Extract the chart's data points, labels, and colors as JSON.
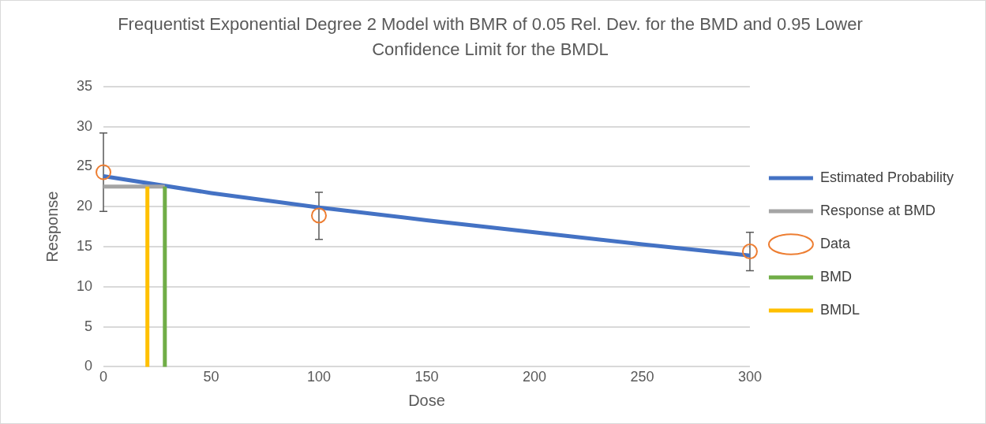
{
  "chart_data": {
    "type": "line",
    "title": "Frequentist Exponential Degree 2 Model with BMR of 0.05 Rel. Dev. for the BMD and 0.95 Lower Confidence Limit for the BMDL",
    "xlabel": "Dose",
    "ylabel": "Response",
    "xlim": [
      0,
      300
    ],
    "xticks": [
      0,
      50,
      100,
      150,
      200,
      250,
      300
    ],
    "ylim": [
      0,
      35
    ],
    "yticks": [
      0,
      5,
      10,
      15,
      20,
      25,
      30,
      35
    ],
    "grid": "y",
    "legend": "right",
    "series": [
      {
        "name": "Estimated Probability",
        "color": "#4472c4",
        "x": [
          0,
          50,
          100,
          150,
          200,
          250,
          300
        ],
        "values": [
          23.8,
          21.7,
          19.9,
          18.3,
          16.8,
          15.3,
          13.9
        ]
      },
      {
        "name": "Response at BMD",
        "color": "#a5a5a5",
        "x": [
          0,
          28.5
        ],
        "values": [
          22.5,
          22.5
        ]
      },
      {
        "name": "Data",
        "type": "scatter",
        "marker": "circle",
        "color": "#ed7d31",
        "x": [
          0,
          100,
          300
        ],
        "values": [
          24.3,
          18.9,
          14.4
        ],
        "errors": [
          [
            19.4,
            29.2
          ],
          [
            15.9,
            21.8
          ],
          [
            12.0,
            16.8
          ]
        ]
      },
      {
        "name": "BMD",
        "color": "#70ad47",
        "x": [
          28.5,
          28.5
        ],
        "values": [
          0,
          22.5
        ]
      },
      {
        "name": "BMDL",
        "color": "#ffc000",
        "x": [
          20.4,
          20.4
        ],
        "values": [
          0,
          22.5
        ]
      }
    ]
  }
}
